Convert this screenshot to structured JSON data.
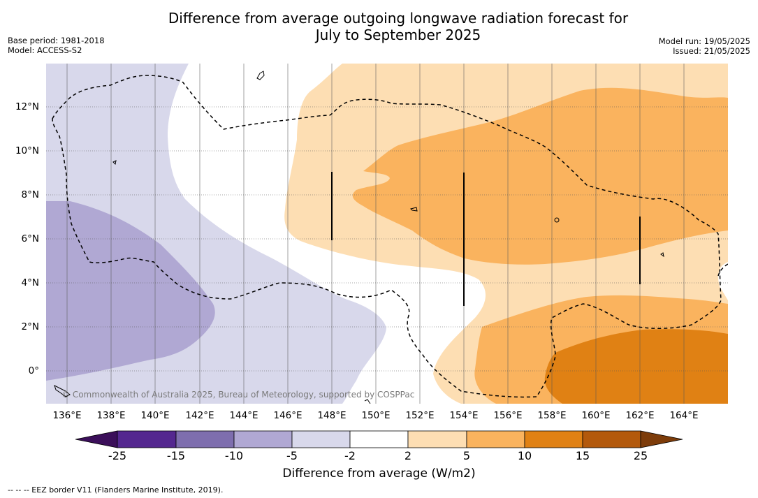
{
  "title_line1": "Difference from average outgoing longwave radiation forecast for",
  "title_line2": "July to September 2025",
  "meta_left": {
    "base_period": "Base period: 1981-2018",
    "model": "Model: ACCESS-S2"
  },
  "meta_right": {
    "model_run": "Model run: 19/05/2025",
    "issued": "Issued: 21/05/2025"
  },
  "copyright": "© Commonwealth of Australia 2025, Bureau of Meteorology, supported by COSPPac",
  "footer": "--  --  -- EEZ border V11 (Flanders Marine Institute, 2019).",
  "map": {
    "lat_labels": [
      "12°N",
      "10°N",
      "8°N",
      "6°N",
      "4°N",
      "2°N",
      "0°"
    ],
    "lon_labels": [
      "136°E",
      "138°E",
      "140°E",
      "142°E",
      "144°E",
      "146°E",
      "148°E",
      "150°E",
      "152°E",
      "154°E",
      "156°E",
      "158°E",
      "160°E",
      "162°E",
      "164°E"
    ]
  },
  "colorbar": {
    "title": "Difference from average (W/m2)",
    "ticks": [
      "-25",
      "-15",
      "-10",
      "-5",
      "-2",
      "2",
      "5",
      "10",
      "15",
      "25"
    ],
    "colors": {
      "below_-25": "#3b0f5a",
      "-25_to_-15": "#54278f",
      "-15_to_-10": "#7e6eae",
      "-10_to_-5": "#b0a8d3",
      "-5_to_-2": "#d8d8eb",
      "-2_to_2": "#ffffff",
      "2_to_5": "#fddeb3",
      "5_to_10": "#fab35e",
      "10_to_15": "#e08114",
      "15_to_25": "#b3590c",
      "above_25": "#7d3c0a"
    }
  }
}
